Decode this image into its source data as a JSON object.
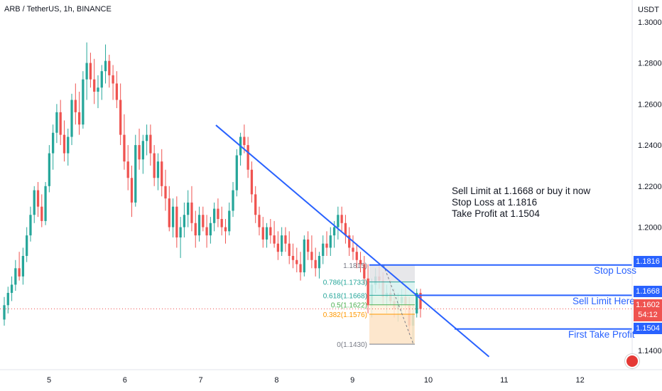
{
  "header": {
    "title": "ARB / TetherUS, 1h, BINANCE",
    "currency": "USDT"
  },
  "annotation": {
    "lines": [
      "Sell Limit at 1.1668 or buy it now",
      "Stop Loss at 1.1816",
      "Take Profit at  1.1504"
    ]
  },
  "labels": {
    "stop_loss": "Stop Loss",
    "sell_limit": "Sell Limit Here",
    "take_profit": "First Take Profit"
  },
  "badges": {
    "stop_loss": "1.1816",
    "sell_limit": "1.1668",
    "take_profit": "1.1504",
    "current_price": "1.1602",
    "countdown": "54:12"
  },
  "colors": {
    "up": "#26a69a",
    "down": "#ef5350",
    "accent": "#2962ff",
    "fib_start": "#787b86",
    "fib_786": "#26a69a",
    "fib_618": "#26a69a",
    "fib_05": "#4caf50",
    "fib_0382": "#ff9800",
    "fib_0": "#787b86"
  },
  "chart_data": {
    "type": "candlestick",
    "symbol": "ARB / TetherUS",
    "timeframe": "1h",
    "y_axis": {
      "ticks": [
        "1.3000",
        "1.2800",
        "1.2600",
        "1.2400",
        "1.2200",
        "1.2000",
        "1.1400"
      ],
      "range": [
        1.127,
        1.305
      ]
    },
    "x_axis": {
      "ticks": [
        "5",
        "6",
        "7",
        "8",
        "9",
        "10",
        "11",
        "12"
      ]
    },
    "current_price": 1.1602,
    "horizontal_levels": [
      {
        "label": "Stop Loss",
        "price": 1.1816
      },
      {
        "label": "Sell Limit Here",
        "price": 1.1668
      },
      {
        "label": "First Take Profit",
        "price": 1.1504
      }
    ],
    "trendline": {
      "from": {
        "day": 7.2,
        "price": 1.2497
      },
      "to": {
        "day": 10.8,
        "price": 1.1369
      }
    },
    "fibonacci": {
      "levels": [
        {
          "ratio": "",
          "price": "1.1815",
          "text": "1.1815)"
        },
        {
          "ratio": "0.786",
          "price": "1.1733",
          "text": "0.786(1.1733)"
        },
        {
          "ratio": "0.618",
          "price": "1.1668",
          "text": "0.618(1.1668)"
        },
        {
          "ratio": "0.5",
          "price": "1.1622",
          "text": "0.5(1.1622)"
        },
        {
          "ratio": "0.382",
          "price": "1.1576",
          "text": "0.382(1.1576)"
        },
        {
          "ratio": "0",
          "price": "1.1430",
          "text": "0(1.1430)"
        }
      ]
    },
    "candles": [
      [
        1.155,
        1.166,
        1.152,
        1.162
      ],
      [
        1.162,
        1.171,
        1.158,
        1.168
      ],
      [
        1.168,
        1.176,
        1.164,
        1.172
      ],
      [
        1.172,
        1.184,
        1.169,
        1.18
      ],
      [
        1.18,
        1.188,
        1.174,
        1.176
      ],
      [
        1.176,
        1.19,
        1.172,
        1.186
      ],
      [
        1.186,
        1.2,
        1.183,
        1.196
      ],
      [
        1.196,
        1.21,
        1.193,
        1.206
      ],
      [
        1.206,
        1.22,
        1.202,
        1.218
      ],
      [
        1.218,
        1.222,
        1.205,
        1.21
      ],
      [
        1.21,
        1.216,
        1.2,
        1.203
      ],
      [
        1.203,
        1.222,
        1.201,
        1.22
      ],
      [
        1.22,
        1.24,
        1.217,
        1.236
      ],
      [
        1.236,
        1.25,
        1.228,
        1.246
      ],
      [
        1.246,
        1.26,
        1.241,
        1.256
      ],
      [
        1.256,
        1.262,
        1.24,
        1.245
      ],
      [
        1.245,
        1.252,
        1.232,
        1.236
      ],
      [
        1.236,
        1.248,
        1.23,
        1.244
      ],
      [
        1.244,
        1.265,
        1.24,
        1.262
      ],
      [
        1.262,
        1.27,
        1.25,
        1.256
      ],
      [
        1.256,
        1.266,
        1.245,
        1.25
      ],
      [
        1.25,
        1.276,
        1.248,
        1.272
      ],
      [
        1.272,
        1.29,
        1.262,
        1.28
      ],
      [
        1.28,
        1.285,
        1.268,
        1.272
      ],
      [
        1.272,
        1.282,
        1.26,
        1.266
      ],
      [
        1.266,
        1.274,
        1.258,
        1.268
      ],
      [
        1.268,
        1.279,
        1.262,
        1.276
      ],
      [
        1.276,
        1.289,
        1.27,
        1.281
      ],
      [
        1.281,
        1.284,
        1.268,
        1.274
      ],
      [
        1.274,
        1.279,
        1.262,
        1.27
      ],
      [
        1.27,
        1.276,
        1.258,
        1.262
      ],
      [
        1.262,
        1.27,
        1.24,
        1.245
      ],
      [
        1.245,
        1.255,
        1.228,
        1.232
      ],
      [
        1.232,
        1.24,
        1.218,
        1.224
      ],
      [
        1.224,
        1.23,
        1.205,
        1.212
      ],
      [
        1.212,
        1.245,
        1.21,
        1.24
      ],
      [
        1.24,
        1.248,
        1.228,
        1.233
      ],
      [
        1.233,
        1.245,
        1.226,
        1.242
      ],
      [
        1.242,
        1.25,
        1.235,
        1.245
      ],
      [
        1.245,
        1.25,
        1.23,
        1.236
      ],
      [
        1.236,
        1.24,
        1.22,
        1.224
      ],
      [
        1.224,
        1.236,
        1.218,
        1.232
      ],
      [
        1.232,
        1.238,
        1.215,
        1.22
      ],
      [
        1.22,
        1.228,
        1.208,
        1.214
      ],
      [
        1.214,
        1.22,
        1.198,
        1.2
      ],
      [
        1.2,
        1.214,
        1.195,
        1.21
      ],
      [
        1.21,
        1.215,
        1.19,
        1.195
      ],
      [
        1.195,
        1.205,
        1.185,
        1.2
      ],
      [
        1.2,
        1.212,
        1.195,
        1.206
      ],
      [
        1.206,
        1.218,
        1.2,
        1.212
      ],
      [
        1.212,
        1.22,
        1.198,
        1.202
      ],
      [
        1.202,
        1.208,
        1.19,
        1.196
      ],
      [
        1.196,
        1.21,
        1.193,
        1.206
      ],
      [
        1.206,
        1.21,
        1.198,
        1.2
      ],
      [
        1.2,
        1.206,
        1.19,
        1.196
      ],
      [
        1.196,
        1.205,
        1.192,
        1.202
      ],
      [
        1.202,
        1.212,
        1.198,
        1.209
      ],
      [
        1.209,
        1.214,
        1.2,
        1.204
      ],
      [
        1.204,
        1.21,
        1.196,
        1.2
      ],
      [
        1.2,
        1.204,
        1.192,
        1.198
      ],
      [
        1.198,
        1.212,
        1.196,
        1.208
      ],
      [
        1.208,
        1.222,
        1.205,
        1.218
      ],
      [
        1.218,
        1.238,
        1.215,
        1.235
      ],
      [
        1.235,
        1.246,
        1.23,
        1.244
      ],
      [
        1.244,
        1.25,
        1.236,
        1.24
      ],
      [
        1.24,
        1.244,
        1.224,
        1.228
      ],
      [
        1.228,
        1.232,
        1.212,
        1.216
      ],
      [
        1.216,
        1.22,
        1.202,
        1.206
      ],
      [
        1.206,
        1.21,
        1.196,
        1.2
      ],
      [
        1.2,
        1.205,
        1.19,
        1.194
      ],
      [
        1.194,
        1.202,
        1.19,
        1.2
      ],
      [
        1.2,
        1.204,
        1.192,
        1.196
      ],
      [
        1.196,
        1.203,
        1.19,
        1.192
      ],
      [
        1.192,
        1.198,
        1.184,
        1.188
      ],
      [
        1.188,
        1.2,
        1.186,
        1.196
      ],
      [
        1.196,
        1.2,
        1.188,
        1.192
      ],
      [
        1.192,
        1.198,
        1.182,
        1.186
      ],
      [
        1.186,
        1.192,
        1.18,
        1.184
      ],
      [
        1.184,
        1.19,
        1.178,
        1.182
      ],
      [
        1.182,
        1.188,
        1.174,
        1.178
      ],
      [
        1.178,
        1.196,
        1.176,
        1.194
      ],
      [
        1.194,
        1.198,
        1.184,
        1.188
      ],
      [
        1.188,
        1.196,
        1.18,
        1.184
      ],
      [
        1.184,
        1.19,
        1.176,
        1.18
      ],
      [
        1.18,
        1.188,
        1.175,
        1.186
      ],
      [
        1.186,
        1.196,
        1.182,
        1.192
      ],
      [
        1.192,
        1.198,
        1.186,
        1.19
      ],
      [
        1.19,
        1.2,
        1.186,
        1.196
      ],
      [
        1.196,
        1.203,
        1.19,
        1.2
      ],
      [
        1.2,
        1.21,
        1.194,
        1.206
      ],
      [
        1.206,
        1.21,
        1.198,
        1.202
      ],
      [
        1.202,
        1.206,
        1.192,
        1.196
      ],
      [
        1.196,
        1.2,
        1.186,
        1.19
      ],
      [
        1.19,
        1.196,
        1.184,
        1.188
      ],
      [
        1.188,
        1.192,
        1.18,
        1.184
      ],
      [
        1.184,
        1.188,
        1.178,
        1.182
      ],
      [
        1.182,
        1.186,
        1.172,
        1.175
      ],
      [
        1.175,
        1.182,
        1.158,
        1.162
      ],
      [
        1.162,
        1.175,
        1.156,
        1.172
      ],
      [
        1.172,
        1.18,
        1.168,
        1.176
      ],
      [
        1.176,
        1.182,
        1.17,
        1.174
      ],
      [
        1.174,
        1.178,
        1.162,
        1.166
      ],
      [
        1.166,
        1.172,
        1.158,
        1.168
      ],
      [
        1.168,
        1.174,
        1.162,
        1.164
      ],
      [
        1.164,
        1.17,
        1.156,
        1.16
      ],
      [
        1.16,
        1.168,
        1.154,
        1.163
      ],
      [
        1.163,
        1.17,
        1.158,
        1.166
      ],
      [
        1.166,
        1.172,
        1.158,
        1.162
      ],
      [
        1.162,
        1.166,
        1.148,
        1.152
      ],
      [
        1.152,
        1.162,
        1.143,
        1.158
      ],
      [
        1.158,
        1.17,
        1.156,
        1.168
      ],
      [
        1.168,
        1.17,
        1.156,
        1.1602
      ]
    ]
  }
}
